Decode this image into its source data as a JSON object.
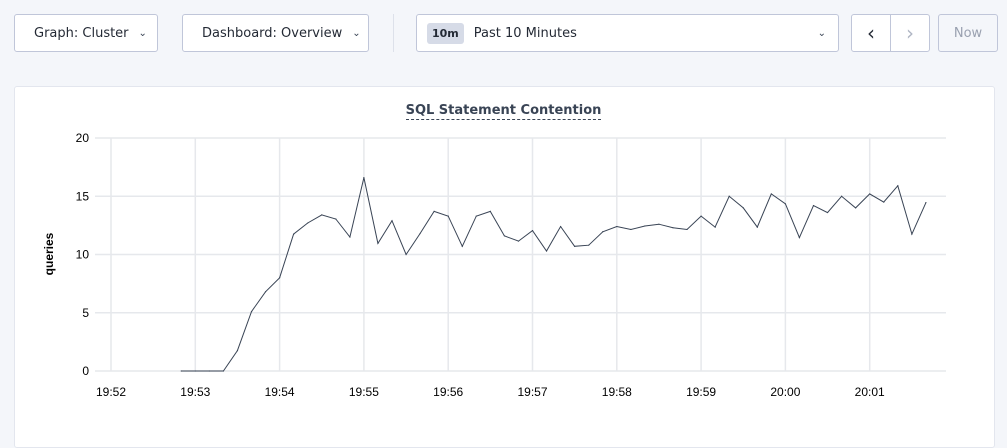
{
  "toolbar": {
    "graph_label": "Graph: Cluster",
    "dashboard_label": "Dashboard: Overview",
    "time_badge": "10m",
    "time_range": "Past 10 Minutes",
    "now_label": "Now",
    "prev_icon": "chevron-left-icon",
    "next_icon": "chevron-right-icon"
  },
  "chart_data": {
    "type": "line",
    "title": "SQL Statement Contention",
    "xlabel": "",
    "ylabel": "queries",
    "ylim": [
      0,
      20
    ],
    "yticks": [
      "0",
      "5",
      "10",
      "15",
      "20"
    ],
    "xticks": [
      "19:52",
      "19:53",
      "19:54",
      "19:55",
      "19:56",
      "19:57",
      "19:58",
      "19:59",
      "20:00",
      "20:01"
    ],
    "grid": true,
    "line_color": "#394455",
    "x_start": "19:52:50",
    "x_step_seconds": 10,
    "values": [
      0,
      0,
      0,
      0,
      1.75,
      5.1,
      6.8,
      8.0,
      11.75,
      12.7,
      13.4,
      13.05,
      11.5,
      16.6,
      10.95,
      12.9,
      10.0,
      11.8,
      13.7,
      13.3,
      10.7,
      13.3,
      13.7,
      11.6,
      11.15,
      12.05,
      10.3,
      12.4,
      10.7,
      10.8,
      11.95,
      12.4,
      12.15,
      12.45,
      12.6,
      12.3,
      12.15,
      13.3,
      12.35,
      15.0,
      14.0,
      12.35,
      15.2,
      14.35,
      11.45,
      14.2,
      13.6,
      15.0,
      14.0,
      15.2,
      14.5,
      15.9,
      11.75,
      14.45
    ]
  }
}
